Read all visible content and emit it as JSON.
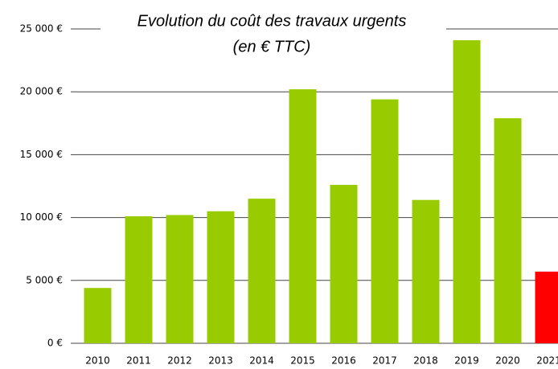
{
  "chart_data": {
    "type": "bar",
    "title": "Evolution du coût des travaux urgents",
    "subtitle": "(en  € TTC)",
    "categories": [
      "2010",
      "2011",
      "2012",
      "2013",
      "2014",
      "2015",
      "2016",
      "2017",
      "2018",
      "2019",
      "2020",
      "2021"
    ],
    "values": [
      4400,
      10100,
      10200,
      10500,
      11500,
      20200,
      12600,
      19400,
      11400,
      24100,
      17900,
      5700
    ],
    "colors": [
      "#99cc00",
      "#99cc00",
      "#99cc00",
      "#99cc00",
      "#99cc00",
      "#99cc00",
      "#99cc00",
      "#99cc00",
      "#99cc00",
      "#99cc00",
      "#99cc00",
      "#ff0000"
    ],
    "ylim": [
      0,
      25000
    ],
    "yticks": [
      {
        "value": 0,
        "label": "0 €"
      },
      {
        "value": 5000,
        "label": "5 000 €"
      },
      {
        "value": 10000,
        "label": "10 000 €"
      },
      {
        "value": 15000,
        "label": "15 000 €"
      },
      {
        "value": 20000,
        "label": "20 000 €"
      },
      {
        "value": 25000,
        "label": "25 000 €"
      }
    ],
    "grid": true
  }
}
